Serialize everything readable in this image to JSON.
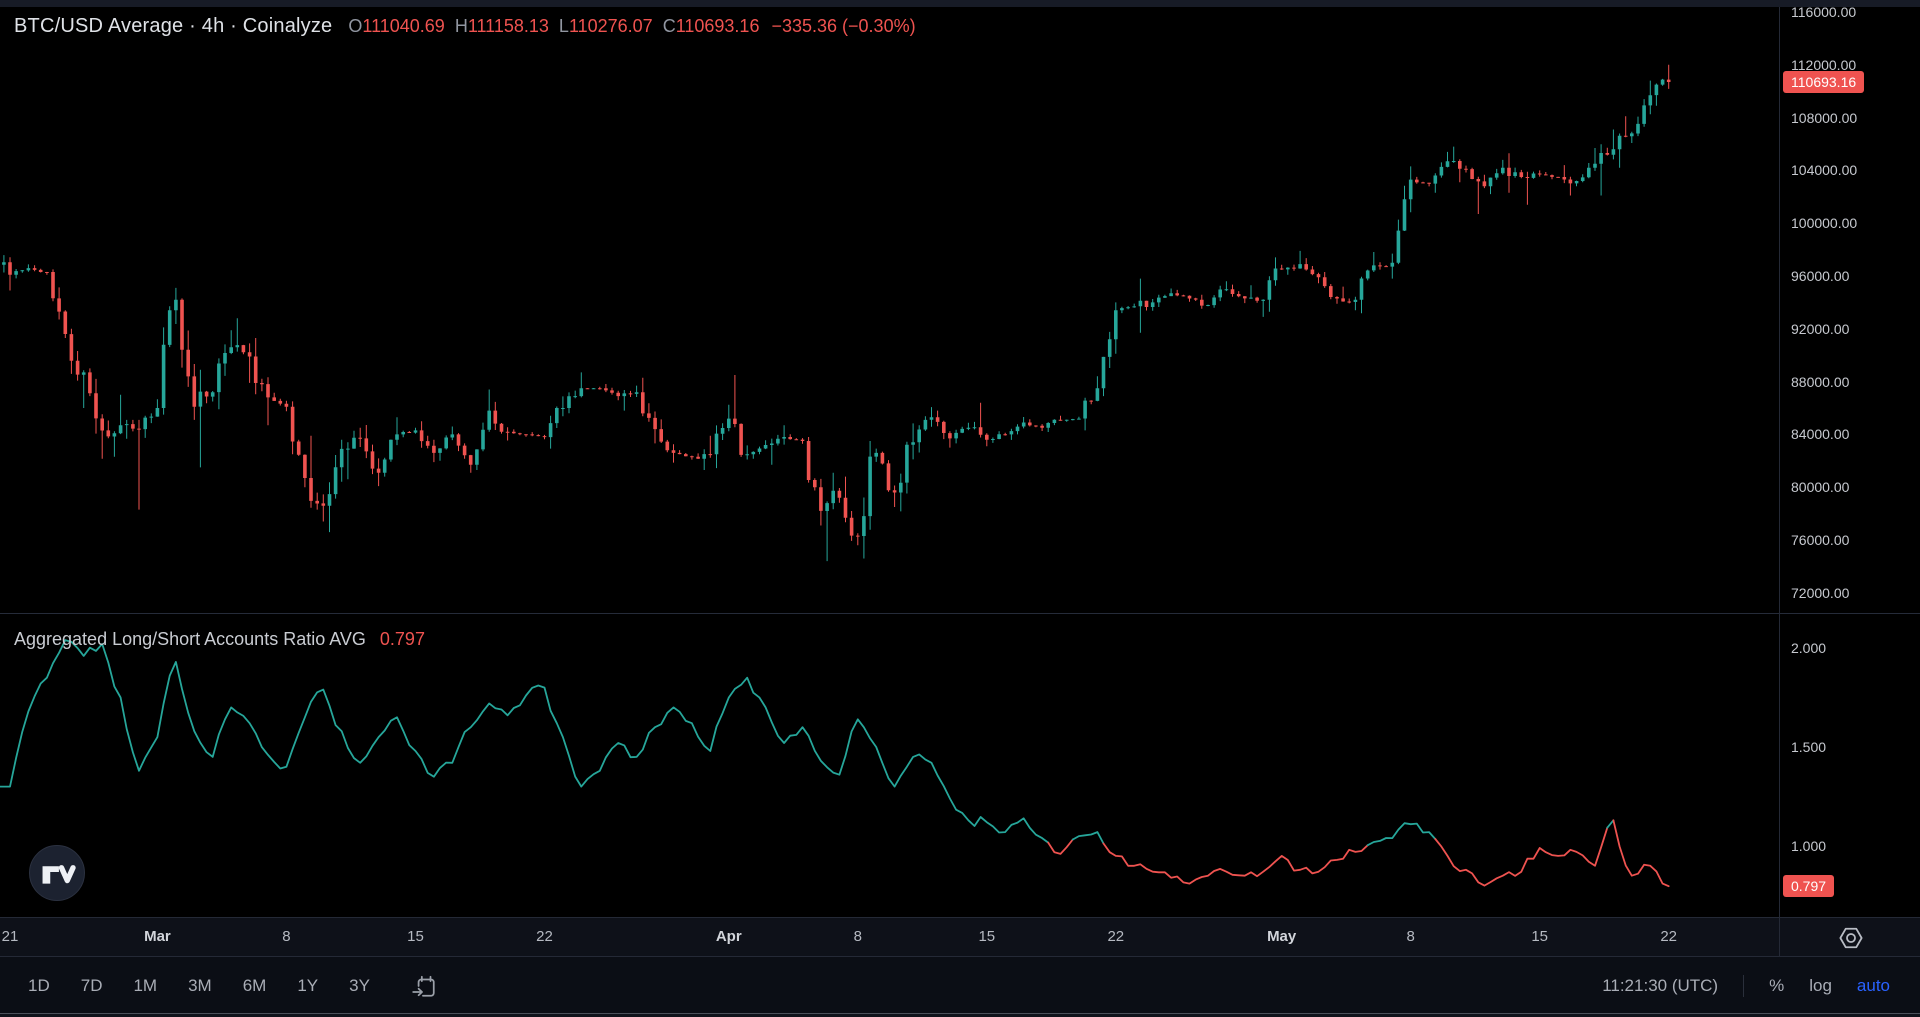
{
  "toolbar": {
    "ranges": [
      "1D",
      "7D",
      "1M",
      "3M",
      "6M",
      "1Y",
      "3Y"
    ],
    "time": "11:21:30 (UTC)",
    "percent_label": "%",
    "log_label": "log",
    "auto_label": "auto",
    "accent": "#2962ff"
  },
  "chart_data": [
    {
      "type": "candlestick",
      "title": "BTC/USD Average · 4h · Coinalyze",
      "ohlc": {
        "o_label": "O",
        "o": "111040.69",
        "h_label": "H",
        "h": "111158.13",
        "l_label": "L",
        "l": "110276.07",
        "c_label": "C",
        "c": "110693.16",
        "change": "−335.36 (−0.30%)"
      },
      "last_price": 110693.16,
      "last_price_label": "110693.16",
      "colors": {
        "up": "#26a69a",
        "down": "#ef5350",
        "badge": "#ef5350"
      },
      "y_axis": {
        "labels": [
          "116000.00",
          "112000.00",
          "108000.00",
          "104000.00",
          "100000.00",
          "96000.00",
          "92000.00",
          "88000.00",
          "84000.00",
          "80000.00",
          "76000.00",
          "72000.00"
        ],
        "step": 4000
      },
      "x_ticks": [
        {
          "label": "21",
          "day": 0
        },
        {
          "label": "Mar",
          "day": 8,
          "major": true
        },
        {
          "label": "8",
          "day": 15
        },
        {
          "label": "15",
          "day": 22
        },
        {
          "label": "22",
          "day": 29
        },
        {
          "label": "Apr",
          "day": 39,
          "major": true
        },
        {
          "label": "8",
          "day": 46
        },
        {
          "label": "15",
          "day": 53
        },
        {
          "label": "22",
          "day": 60
        },
        {
          "label": "May",
          "day": 69,
          "major": true
        },
        {
          "label": "8",
          "day": 76
        },
        {
          "label": "15",
          "day": 83
        },
        {
          "label": "22",
          "day": 90
        }
      ],
      "start_date": "Feb 21",
      "open_start": 98400,
      "daily": [
        [
          96100,
          99000,
          94900
        ],
        [
          96600
        ],
        [
          96300
        ],
        [
          91600,
          96500,
          91300
        ],
        [
          88700,
          92000,
          86000
        ],
        [
          84300,
          89000,
          82150
        ],
        [
          84700,
          87000,
          82300
        ],
        [
          84400,
          85100,
          78300
        ],
        [
          86000
        ],
        [
          94200,
          95100,
          85500
        ],
        [
          86100,
          94300,
          85100
        ],
        [
          87200,
          88900,
          81500
        ],
        [
          90600
        ],
        [
          89900,
          92800,
          87900
        ],
        [
          86800,
          91300,
          84700
        ],
        [
          86100
        ],
        [
          80700,
          86500,
          80000
        ],
        [
          78600,
          83900,
          77400
        ],
        [
          82900,
          83600,
          76600
        ],
        [
          83700,
          84500,
          80600
        ],
        [
          81100
        ],
        [
          84000,
          85300,
          80800
        ],
        [
          84300
        ],
        [
          82600
        ],
        [
          84000
        ],
        [
          81700,
          84100,
          81100
        ],
        [
          85800,
          87400,
          81300
        ],
        [
          84200
        ],
        [
          84000
        ],
        [
          83800
        ],
        [
          86000
        ],
        [
          87500,
          88700,
          85600
        ],
        [
          87500
        ],
        [
          86900
        ],
        [
          87200,
          87700,
          85800
        ],
        [
          84400
        ],
        [
          82600
        ],
        [
          82300
        ],
        [
          82500,
          83900,
          81300
        ],
        [
          85200
        ],
        [
          82500,
          88500,
          82100
        ],
        [
          83200
        ],
        [
          83800,
          84700,
          81700
        ],
        [
          83500
        ],
        [
          78200,
          83800,
          77100
        ],
        [
          79200,
          81100,
          74400
        ],
        [
          76300,
          80800,
          75600
        ],
        [
          82600,
          83500,
          74600
        ],
        [
          79600,
          82700,
          78500
        ],
        [
          83400
        ],
        [
          85300
        ],
        [
          83700,
          85800,
          83000
        ],
        [
          84500
        ],
        [
          83600,
          86400,
          83100
        ],
        [
          84000
        ],
        [
          84900
        ],
        [
          84500
        ],
        [
          85100
        ],
        [
          85200
        ],
        [
          87500,
          88400,
          84300
        ],
        [
          93400,
          94000,
          86900
        ],
        [
          93700
        ],
        [
          94000,
          95800,
          91700
        ],
        [
          94700
        ],
        [
          94300
        ],
        [
          93800
        ],
        [
          95000,
          95600,
          93600
        ],
        [
          94300
        ],
        [
          94200,
          95300,
          92900
        ],
        [
          96500
        ],
        [
          96900,
          97900,
          96100
        ],
        [
          95900
        ],
        [
          94300,
          96300,
          93900
        ],
        [
          94200,
          95200,
          93400
        ],
        [
          96800
        ],
        [
          97000,
          97700,
          95800
        ],
        [
          103300,
          104300,
          96900
        ],
        [
          103000
        ],
        [
          104700
        ],
        [
          104100,
          105800,
          103100
        ],
        [
          102800,
          104200,
          100700
        ],
        [
          104200
        ],
        [
          103500,
          105300,
          102300
        ],
        [
          103700,
          104000,
          101400
        ],
        [
          103500
        ],
        [
          103200,
          104400,
          102100
        ],
        [
          104500,
          105700,
          103100
        ],
        [
          105600,
          107100,
          102100
        ],
        [
          106800,
          108100,
          104200
        ],
        [
          109700,
          110800,
          106600
        ],
        [
          110693.16,
          112000,
          108900
        ]
      ]
    },
    {
      "type": "line",
      "title": "Aggregated Long/Short Accounts Ratio AVG",
      "last_value": 0.797,
      "last_value_label": "0.797",
      "threshold": 1.0,
      "colors": {
        "above": "#26a69a",
        "below": "#ef5350",
        "badge": "#ef5350"
      },
      "y_axis": {
        "labels": [
          "2.000",
          "1.500",
          "1.000"
        ],
        "step": 0.5
      },
      "daily": [
        1.3,
        1.68,
        1.85,
        2.04,
        1.96,
        2.02,
        1.75,
        1.38,
        1.55,
        1.93,
        1.58,
        1.45,
        1.7,
        1.62,
        1.46,
        1.4,
        1.65,
        1.79,
        1.58,
        1.42,
        1.55,
        1.65,
        1.48,
        1.35,
        1.42,
        1.6,
        1.72,
        1.66,
        1.76,
        1.8,
        1.55,
        1.3,
        1.38,
        1.52,
        1.45,
        1.6,
        1.7,
        1.62,
        1.48,
        1.75,
        1.85,
        1.7,
        1.52,
        1.6,
        1.43,
        1.36,
        1.64,
        1.5,
        1.3,
        1.45,
        1.42,
        1.24,
        1.13,
        1.12,
        1.07,
        1.14,
        1.04,
        0.96,
        1.05,
        1.07,
        0.95,
        0.9,
        0.87,
        0.84,
        0.81,
        0.85,
        0.87,
        0.85,
        0.87,
        0.95,
        0.88,
        0.87,
        0.93,
        0.97,
        1.02,
        1.04,
        1.11,
        1.07,
        0.95,
        0.88,
        0.8,
        0.85,
        0.87,
        0.99,
        0.95,
        0.97,
        0.9,
        1.13,
        0.85,
        0.9,
        0.797
      ]
    }
  ]
}
